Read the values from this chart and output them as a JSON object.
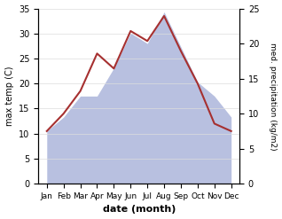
{
  "months": [
    "Jan",
    "Feb",
    "Mar",
    "Apr",
    "May",
    "Jun",
    "Jul",
    "Aug",
    "Sep",
    "Oct",
    "Nov",
    "Dec"
  ],
  "temperature": [
    10.5,
    14.0,
    18.5,
    26.0,
    23.0,
    30.5,
    28.5,
    33.5,
    26.5,
    20.0,
    12.0,
    10.5
  ],
  "precipitation": [
    7.5,
    9.5,
    12.5,
    12.5,
    16.5,
    21.5,
    20.0,
    24.5,
    19.5,
    14.5,
    12.5,
    9.5
  ],
  "temp_color": "#a63030",
  "precip_color": "#b8c0e0",
  "left_ylim": [
    0,
    35
  ],
  "right_ylim": [
    0,
    25
  ],
  "left_yticks": [
    0,
    5,
    10,
    15,
    20,
    25,
    30,
    35
  ],
  "right_yticks": [
    0,
    5,
    10,
    15,
    20,
    25
  ],
  "ylabel_left": "max temp (C)",
  "ylabel_right": "med. precipitation (kg/m2)",
  "xlabel": "date (month)",
  "bg_color": "#ffffff",
  "figsize": [
    3.18,
    2.47
  ],
  "dpi": 100
}
